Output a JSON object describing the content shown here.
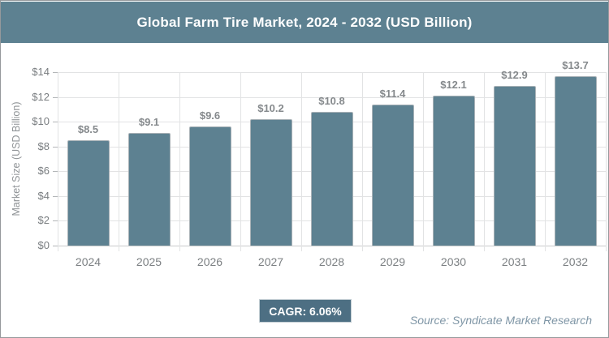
{
  "header": {
    "title": "Global Farm Tire Market, 2024 - 2032 (USD Billion)"
  },
  "chart_data": {
    "type": "bar",
    "title": "Global Farm Tire Market, 2024 - 2032 (USD Billion)",
    "categories": [
      "2024",
      "2025",
      "2026",
      "2027",
      "2028",
      "2029",
      "2030",
      "2031",
      "2032"
    ],
    "values": [
      8.5,
      9.1,
      9.6,
      10.2,
      10.8,
      11.4,
      12.1,
      12.9,
      13.7
    ],
    "bar_labels": [
      "$8.5",
      "$9.1",
      "$9.6",
      "$10.2",
      "$10.8",
      "$11.4",
      "$12.1",
      "$12.9",
      "$13.7"
    ],
    "xlabel": "",
    "ylabel": "Market Size (USD Billion)",
    "ylim": [
      0,
      14
    ],
    "ytick_step": 2,
    "ytick_labels": [
      "$0",
      "$2",
      "$4",
      "$6",
      "$8",
      "$10",
      "$12",
      "$14"
    ],
    "grid": true,
    "legend_position": "none"
  },
  "footer": {
    "cagr_label": "CAGR: 6.06%",
    "source": "Source: Syndicate Market Research"
  },
  "colors": {
    "header_bg": "#5D8191",
    "bar": "#5D8191",
    "cagr_badge_bg": "#4D6F83",
    "grid": "#E2E3E4",
    "frame_border": "#95999C"
  }
}
